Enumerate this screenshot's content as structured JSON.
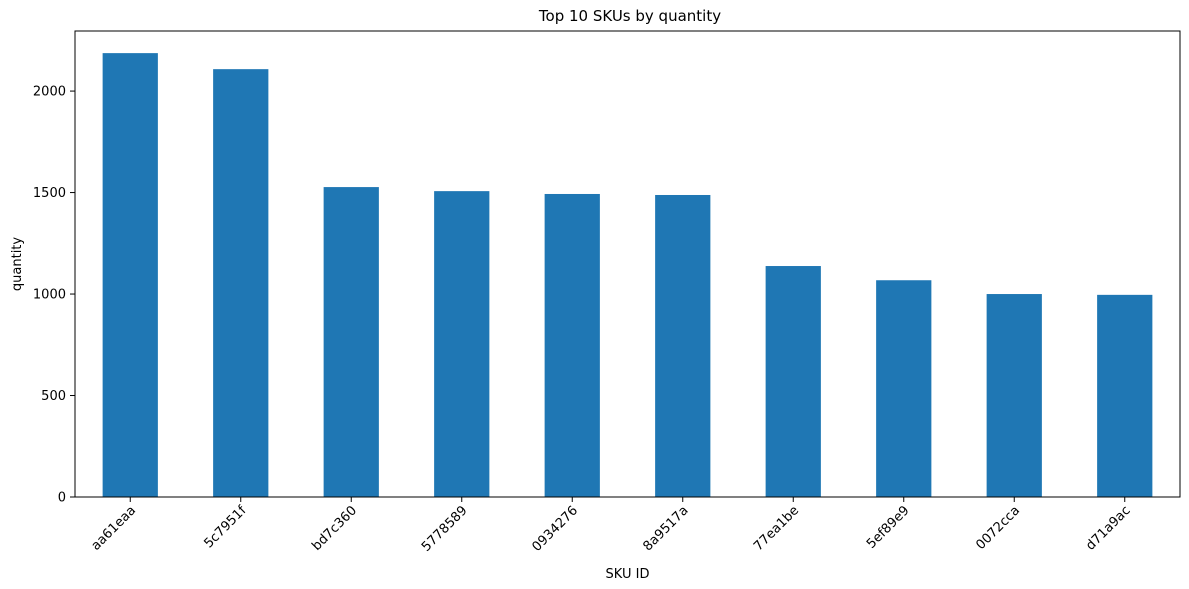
{
  "chart_data": {
    "type": "bar",
    "title": "Top 10 SKUs by quantity",
    "xlabel": "SKU ID",
    "ylabel": "quantity",
    "categories": [
      "aa61eaa",
      "5c7951f",
      "bd7c360",
      "5778589",
      "0934276",
      "8a9517a",
      "77ea1be",
      "5ef89e9",
      "0072cca",
      "d71a9ac"
    ],
    "values": [
      2187,
      2108,
      1527,
      1507,
      1493,
      1488,
      1138,
      1068,
      1000,
      996
    ],
    "ylim": [
      0,
      2296
    ],
    "yticks": [
      0,
      500,
      1000,
      1500,
      2000
    ],
    "bar_color": "#1f77b4",
    "grid": false,
    "legend": "none"
  }
}
